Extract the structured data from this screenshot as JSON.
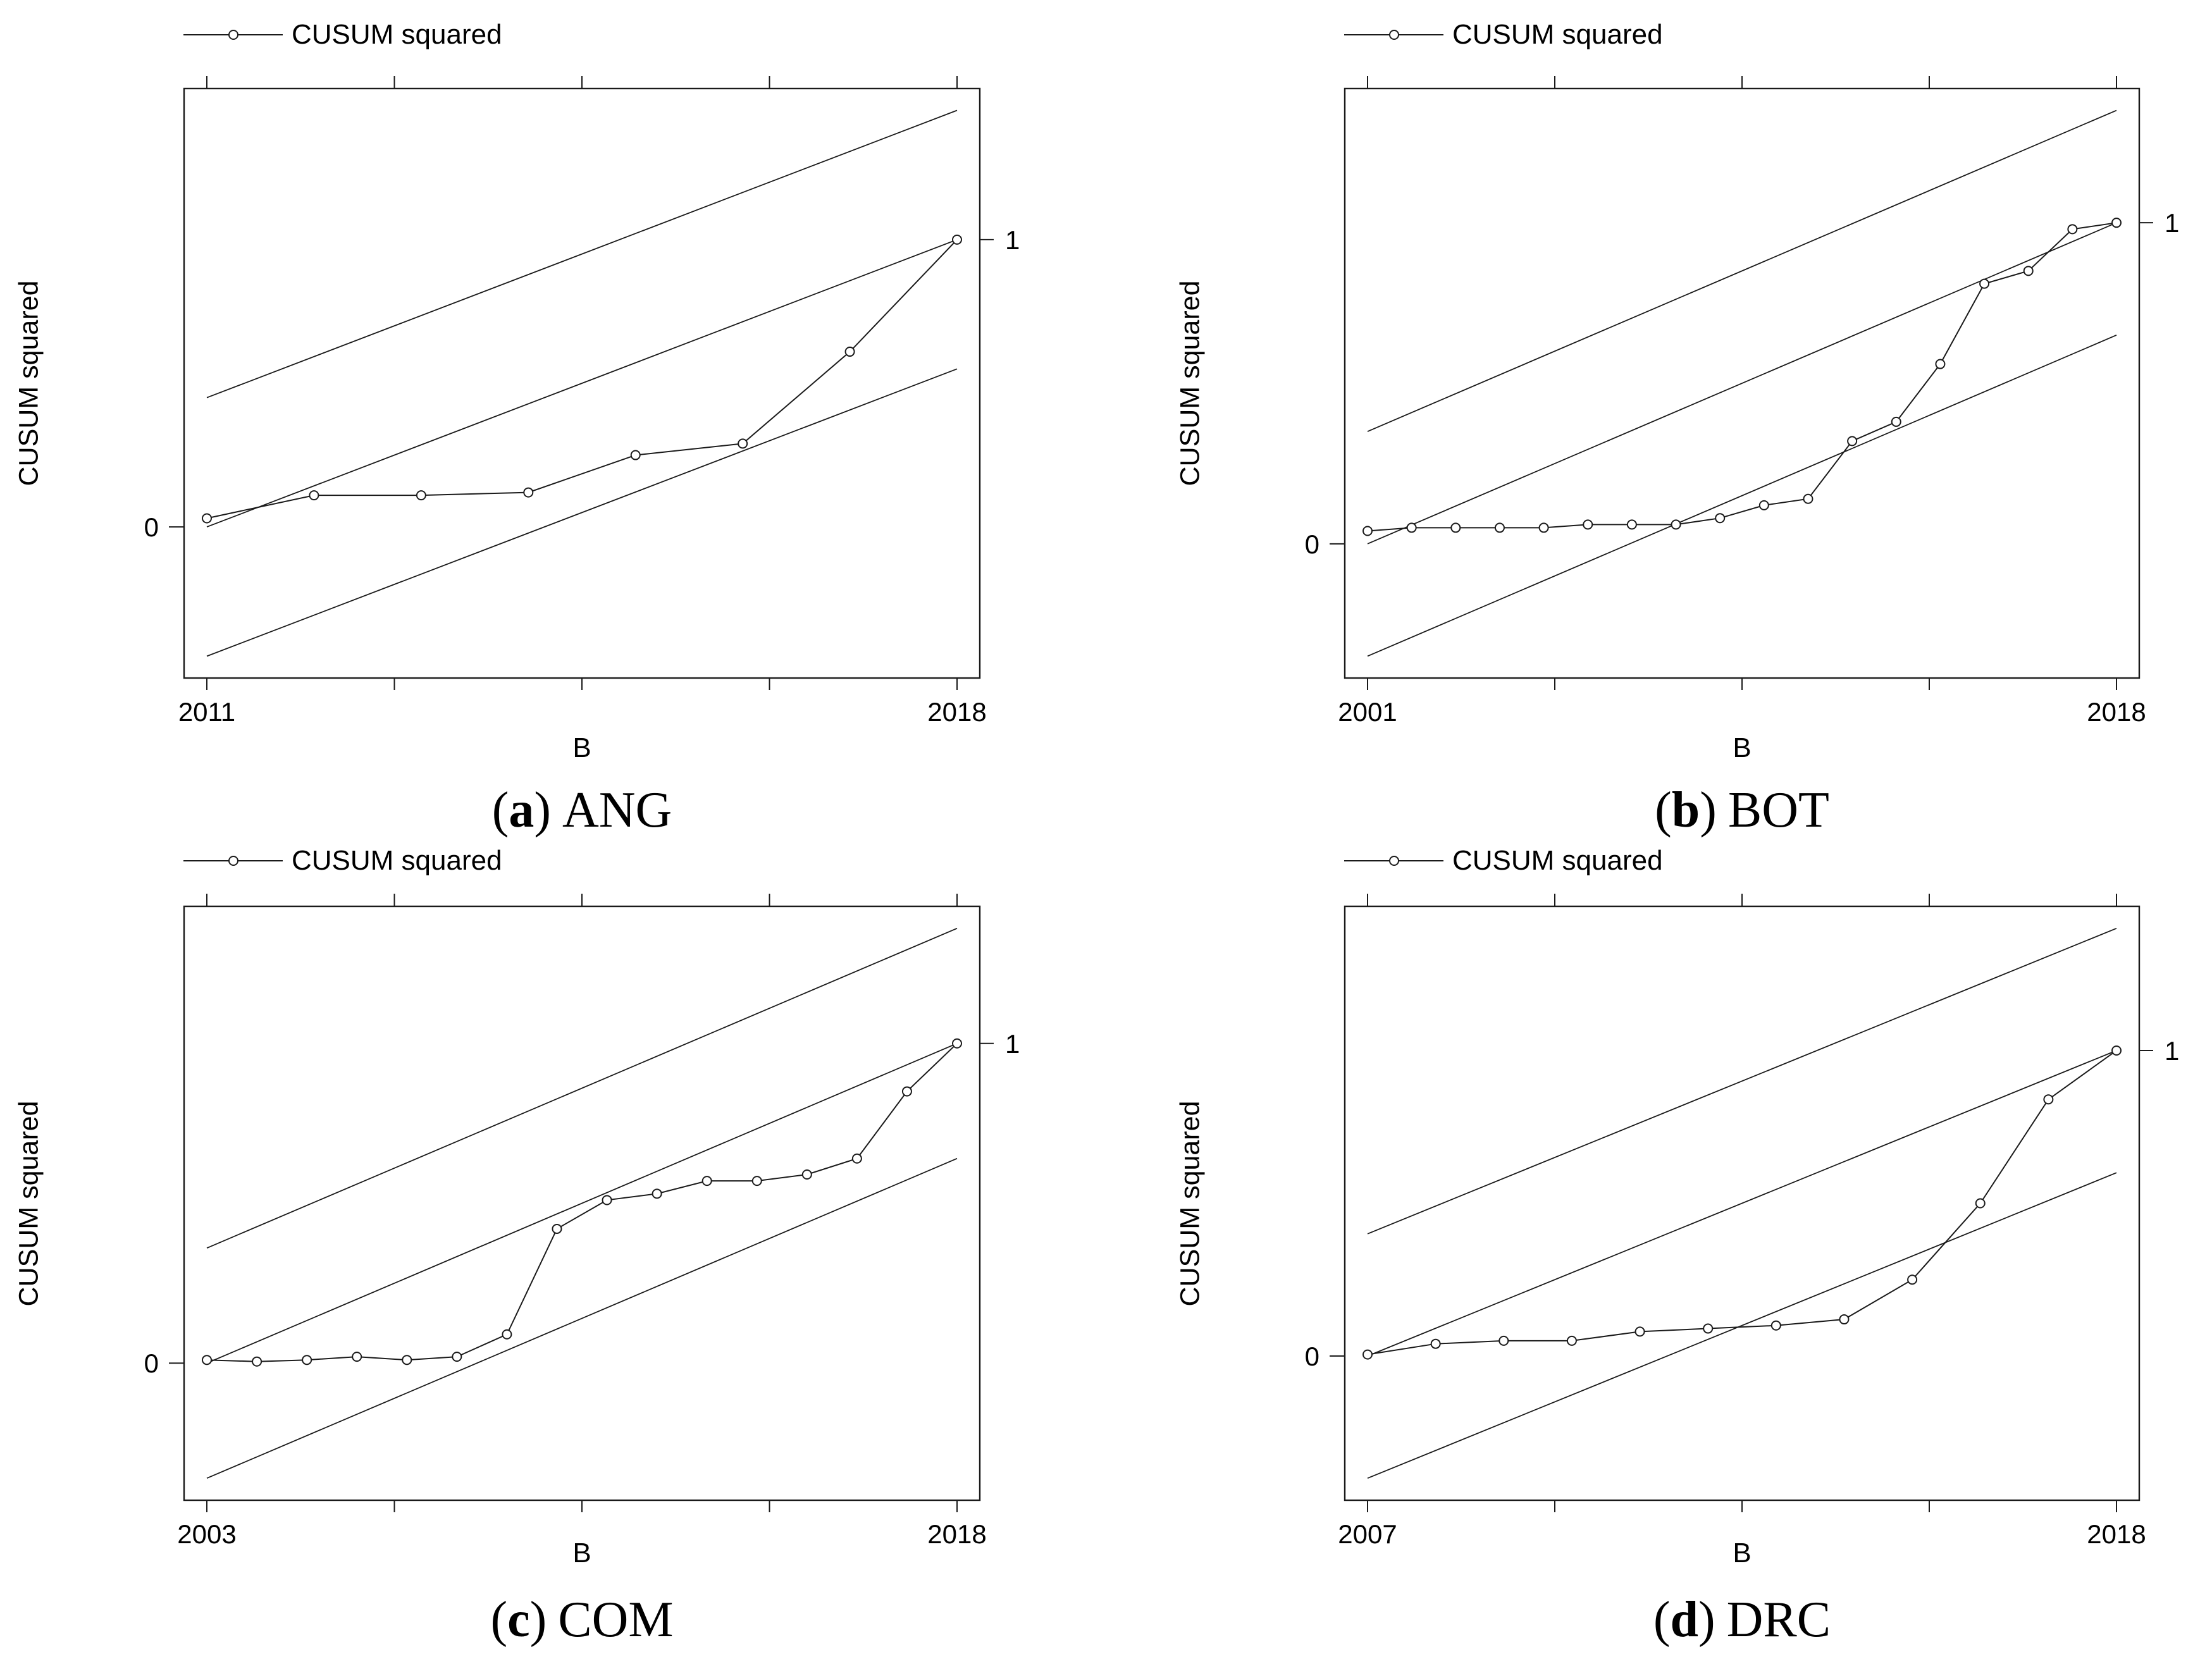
{
  "figure": {
    "legend_label": "CUSUM squared",
    "y_axis_label": "CUSUM squared",
    "x_axis_label": "B",
    "colors": {
      "line": "#1a1a1a",
      "text": "#000000",
      "background": "#ffffff"
    }
  },
  "chart_data": [
    {
      "id": "a",
      "type": "line",
      "title": "(a) ANG",
      "caption": {
        "open": "(",
        "letter": "a",
        "close": ")",
        "name": "ANG"
      },
      "xlabel": "B",
      "ylabel": "CUSUM squared",
      "legend": [
        "CUSUM squared"
      ],
      "legend_position": "top-left",
      "grid": false,
      "marker": "open-circle",
      "x": [
        2011,
        2012,
        2013,
        2014,
        2015,
        2016,
        2017,
        2018
      ],
      "series": [
        {
          "name": "CUSUM squared",
          "values": [
            0.03,
            0.11,
            0.11,
            0.12,
            0.25,
            0.29,
            0.61,
            1.0
          ]
        }
      ],
      "reference_line": {
        "from": [
          2011,
          0
        ],
        "to": [
          2018,
          1
        ]
      },
      "bounds_offset": 0.45,
      "yticks": [
        {
          "value": 0,
          "label": "0",
          "side": "left"
        },
        {
          "value": 1,
          "label": "1",
          "side": "right"
        }
      ],
      "xtick_labels": {
        "first": "2011",
        "last": "2018"
      },
      "x_tick_count": 5,
      "ylim": [
        -0.53,
        1.53
      ]
    },
    {
      "id": "b",
      "type": "line",
      "title": "(b) BOT",
      "caption": {
        "open": "(",
        "letter": "b",
        "close": ")",
        "name": "BOT"
      },
      "xlabel": "B",
      "ylabel": "CUSUM squared",
      "legend": [
        "CUSUM squared"
      ],
      "legend_position": "top-left",
      "grid": false,
      "marker": "open-circle",
      "x": [
        2001,
        2002,
        2003,
        2004,
        2005,
        2006,
        2007,
        2008,
        2009,
        2010,
        2011,
        2012,
        2013,
        2014,
        2015,
        2016,
        2017,
        2018
      ],
      "series": [
        {
          "name": "CUSUM squared",
          "values": [
            0.04,
            0.05,
            0.05,
            0.05,
            0.05,
            0.06,
            0.06,
            0.06,
            0.08,
            0.12,
            0.14,
            0.32,
            0.38,
            0.56,
            0.81,
            0.85,
            0.98,
            1.0
          ]
        }
      ],
      "reference_line": {
        "from": [
          2001,
          0
        ],
        "to": [
          2018,
          1
        ]
      },
      "bounds_offset": 0.35,
      "yticks": [
        {
          "value": 0,
          "label": "0",
          "side": "left"
        },
        {
          "value": 1,
          "label": "1",
          "side": "right"
        }
      ],
      "xtick_labels": {
        "first": "2001",
        "last": "2018"
      },
      "x_tick_count": 5,
      "ylim": [
        -0.42,
        1.42
      ]
    },
    {
      "id": "c",
      "type": "line",
      "title": "(c) COM",
      "caption": {
        "open": "(",
        "letter": "c",
        "close": ")",
        "name": "COM"
      },
      "xlabel": "B",
      "ylabel": "CUSUM squared",
      "legend": [
        "CUSUM squared"
      ],
      "legend_position": "top-left",
      "grid": false,
      "marker": "open-circle",
      "x": [
        2003,
        2004,
        2005,
        2006,
        2007,
        2008,
        2009,
        2010,
        2011,
        2012,
        2013,
        2014,
        2015,
        2016,
        2017,
        2018
      ],
      "series": [
        {
          "name": "CUSUM squared",
          "values": [
            0.01,
            0.005,
            0.01,
            0.02,
            0.01,
            0.02,
            0.09,
            0.42,
            0.51,
            0.53,
            0.57,
            0.57,
            0.59,
            0.64,
            0.85,
            1.0
          ]
        }
      ],
      "reference_line": {
        "from": [
          2003,
          0
        ],
        "to": [
          2018,
          1
        ]
      },
      "bounds_offset": 0.36,
      "yticks": [
        {
          "value": 0,
          "label": "0",
          "side": "left"
        },
        {
          "value": 1,
          "label": "1",
          "side": "right"
        }
      ],
      "xtick_labels": {
        "first": "2003",
        "last": "2018"
      },
      "x_tick_count": 5,
      "ylim": [
        -0.43,
        1.43
      ]
    },
    {
      "id": "d",
      "type": "line",
      "title": "(d) DRC",
      "caption": {
        "open": "(",
        "letter": "d",
        "close": ")",
        "name": "DRC"
      },
      "xlabel": "B",
      "ylabel": "CUSUM squared",
      "legend": [
        "CUSUM squared"
      ],
      "legend_position": "top-left",
      "grid": false,
      "marker": "open-circle",
      "x": [
        2007,
        2008,
        2009,
        2010,
        2011,
        2012,
        2013,
        2014,
        2015,
        2016,
        2017,
        2018
      ],
      "series": [
        {
          "name": "CUSUM squared",
          "values": [
            0.005,
            0.04,
            0.05,
            0.05,
            0.08,
            0.09,
            0.1,
            0.12,
            0.25,
            0.5,
            0.84,
            1.0
          ]
        }
      ],
      "reference_line": {
        "from": [
          2007,
          0
        ],
        "to": [
          2018,
          1
        ]
      },
      "bounds_offset": 0.4,
      "yticks": [
        {
          "value": 0,
          "label": "0",
          "side": "left"
        },
        {
          "value": 1,
          "label": "1",
          "side": "right"
        }
      ],
      "xtick_labels": {
        "first": "2007",
        "last": "2018"
      },
      "x_tick_count": 5,
      "ylim": [
        -0.47,
        1.47
      ]
    }
  ]
}
